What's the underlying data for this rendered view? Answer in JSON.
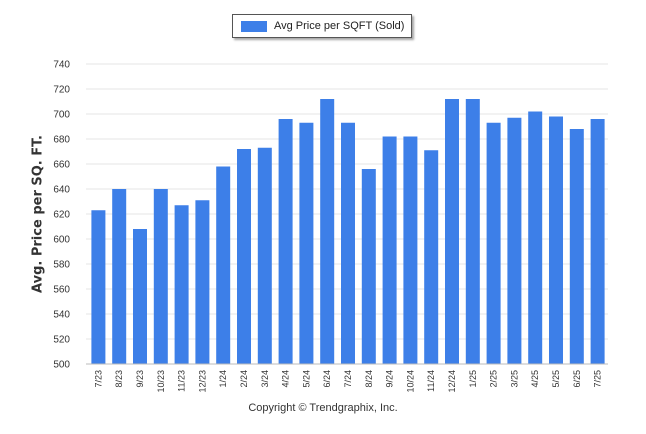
{
  "chart_data": {
    "type": "bar",
    "legend": {
      "label": "Avg Price per SQFT (Sold)",
      "placement": "top-center"
    },
    "ylabel": "Avg. Price per SQ. FT.",
    "xlabel": "",
    "ylim": [
      500,
      740
    ],
    "yticks": [
      500,
      520,
      540,
      560,
      580,
      600,
      620,
      640,
      660,
      680,
      700,
      720,
      740
    ],
    "grid": true,
    "bar_color": "#3d7fe8",
    "categories": [
      "7/23",
      "8/23",
      "9/23",
      "10/23",
      "11/23",
      "12/23",
      "1/24",
      "2/24",
      "3/24",
      "4/24",
      "5/24",
      "6/24",
      "7/24",
      "8/24",
      "9/24",
      "10/24",
      "11/24",
      "12/24",
      "1/25",
      "2/25",
      "3/25",
      "4/25",
      "5/25",
      "6/25",
      "7/25"
    ],
    "values": [
      623,
      640,
      608,
      640,
      627,
      631,
      658,
      672,
      673,
      696,
      693,
      712,
      693,
      656,
      682,
      682,
      671,
      712,
      712,
      693,
      697,
      702,
      698,
      688,
      696
    ]
  },
  "footer": {
    "copyright": "Copyright © Trendgraphix, Inc."
  }
}
